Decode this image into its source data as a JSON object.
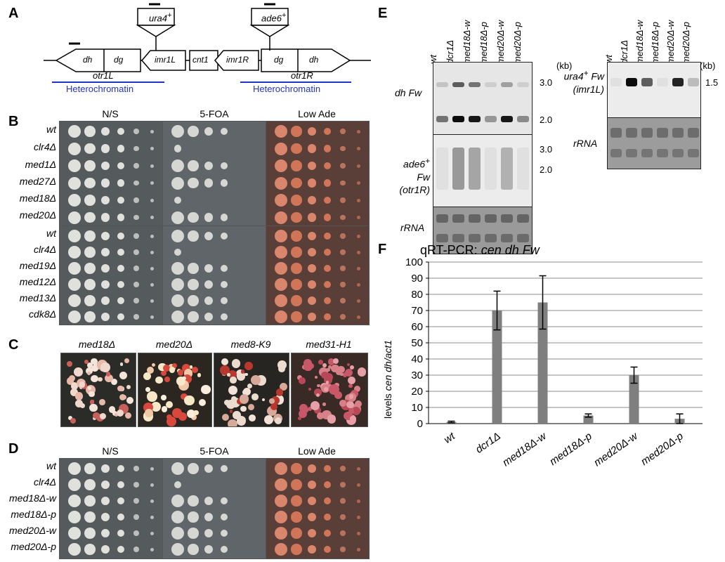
{
  "panels": {
    "a": "A",
    "b": "B",
    "c": "C",
    "d": "D",
    "e": "E",
    "f": "F"
  },
  "panel_a": {
    "markers": [
      "ura4",
      "ade6"
    ],
    "marker_sup": "+",
    "genes": [
      "dh",
      "dg",
      "imr1L",
      "cnt1",
      "imr1R",
      "dg",
      "dh"
    ],
    "otr_left": "otr1L",
    "otr_right": "otr1R",
    "hetero_left": "Heterochromatin",
    "hetero_right": "Heterochromatin",
    "line_color": "#2233cc"
  },
  "panel_b": {
    "headers": [
      "N/S",
      "5-FOA",
      "Low Ade"
    ],
    "rows_top": [
      "wt",
      "clr4Δ",
      "med1Δ",
      "med27Δ",
      "med18Δ",
      "med20Δ"
    ],
    "rows_bottom": [
      "wt",
      "clr4Δ",
      "med19Δ",
      "med12Δ",
      "med13Δ",
      "cdk8Δ"
    ]
  },
  "panel_c": {
    "titles": [
      "med18Δ",
      "med20Δ",
      "med8-K9",
      "med31-H1"
    ]
  },
  "panel_d": {
    "headers": [
      "N/S",
      "5-FOA",
      "Low Ade"
    ],
    "rows": [
      "wt",
      "clr4Δ",
      "med18Δ-w",
      "med18Δ-p",
      "med20Δ-w",
      "med20Δ-p"
    ]
  },
  "panel_e": {
    "lanes_left": [
      "wt",
      "dcr1Δ",
      "med18Δ-w",
      "med18Δ-p",
      "med20Δ-w",
      "med20Δ-p"
    ],
    "lanes_right": [
      "wt",
      "dcr1Δ",
      "med18Δ-w",
      "med18Δ-p",
      "med20Δ-w",
      "med20Δ-p"
    ],
    "probe1": "dh Fw",
    "probe2_line1": "ade6",
    "probe2_line2": " Fw",
    "probe2_line3": "(otr1R)",
    "rrna": "rRNA",
    "probe3_line1": "ura4",
    "probe3_line2": " Fw",
    "probe3_line3": "(imr1L)",
    "sup": "+",
    "kb_unit": "(kb)",
    "kb_left_top": [
      "3.0",
      "2.0"
    ],
    "kb_left_mid": [
      "3.0",
      "2.0"
    ],
    "kb_right": "1.5"
  },
  "chart_data": {
    "type": "bar",
    "title_prefix": "qRT-PCR: ",
    "title_italic": "cen dh Fw",
    "ylabel_prefix": "levels ",
    "ylabel_italic": "cen dh/act1",
    "categories": [
      "wt",
      "dcr1Δ",
      "med18Δ-w",
      "med18Δ-p",
      "med20Δ-w",
      "med20Δ-p"
    ],
    "values": [
      1,
      70,
      75,
      5,
      30,
      3
    ],
    "errors": [
      0.5,
      12,
      16.5,
      1,
      5,
      3
    ],
    "ylim": [
      0,
      100
    ],
    "yticks": [
      "0",
      "10",
      "20",
      "30",
      "40",
      "50",
      "60",
      "70",
      "80",
      "90",
      "100"
    ],
    "bar_color": "#7f7f7f",
    "grid": true,
    "legend": "none"
  }
}
